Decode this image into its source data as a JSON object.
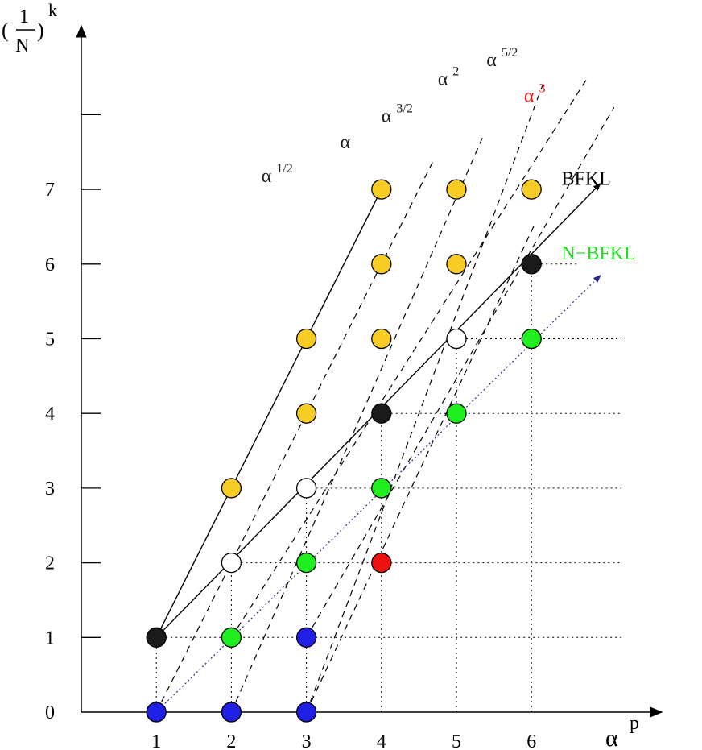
{
  "chart_data": {
    "type": "scatter",
    "x_axis": {
      "label": "α",
      "label_superscript": "p",
      "ticks": [
        "1",
        "2",
        "3",
        "4",
        "5",
        "6"
      ]
    },
    "y_axis": {
      "label_numerator": "1",
      "label_denominator": "N",
      "label_exponent": "k",
      "ticks": [
        "0",
        "1",
        "2",
        "3",
        "4",
        "5",
        "6",
        "7"
      ],
      "unlabeled_tick": 8
    },
    "colors": {
      "blue": "#1f1fe6",
      "yellow": "#f7cc24",
      "green": "#1fee1f",
      "black": "#1a1a1a",
      "white": "#ffffff",
      "red": "#ee1111",
      "bfkl_label": "#000000",
      "nbfkl_label": "#1fdd1f",
      "alpha3_label": "#ee1111"
    },
    "points": [
      {
        "x": 1,
        "y": 0,
        "color": "blue"
      },
      {
        "x": 2,
        "y": 0,
        "color": "blue"
      },
      {
        "x": 3,
        "y": 0,
        "color": "blue"
      },
      {
        "x": 1,
        "y": 1,
        "color": "black"
      },
      {
        "x": 2,
        "y": 1,
        "color": "green"
      },
      {
        "x": 3,
        "y": 1,
        "color": "blue"
      },
      {
        "x": 2,
        "y": 2,
        "color": "white"
      },
      {
        "x": 3,
        "y": 2,
        "color": "green"
      },
      {
        "x": 4,
        "y": 2,
        "color": "red"
      },
      {
        "x": 2,
        "y": 3,
        "color": "yellow"
      },
      {
        "x": 3,
        "y": 3,
        "color": "white"
      },
      {
        "x": 4,
        "y": 3,
        "color": "green"
      },
      {
        "x": 3,
        "y": 4,
        "color": "yellow"
      },
      {
        "x": 4,
        "y": 4,
        "color": "black"
      },
      {
        "x": 5,
        "y": 4,
        "color": "green"
      },
      {
        "x": 3,
        "y": 5,
        "color": "yellow"
      },
      {
        "x": 4,
        "y": 5,
        "color": "yellow"
      },
      {
        "x": 5,
        "y": 5,
        "color": "white"
      },
      {
        "x": 6,
        "y": 5,
        "color": "green"
      },
      {
        "x": 4,
        "y": 6,
        "color": "yellow"
      },
      {
        "x": 5,
        "y": 6,
        "color": "yellow"
      },
      {
        "x": 6,
        "y": 6,
        "color": "black"
      },
      {
        "x": 4,
        "y": 7,
        "color": "yellow"
      },
      {
        "x": 5,
        "y": 7,
        "color": "yellow"
      },
      {
        "x": 6,
        "y": 7,
        "color": "yellow"
      }
    ],
    "horizontal_guides": [
      {
        "y": 1,
        "x_from": 1,
        "x_to": 7.2
      },
      {
        "y": 2,
        "x_from": 2,
        "x_to": 7.2
      },
      {
        "y": 3,
        "x_from": 3,
        "x_to": 7.2
      },
      {
        "y": 4,
        "x_from": 4,
        "x_to": 7.2
      },
      {
        "y": 5,
        "x_from": 5,
        "x_to": 7.2
      },
      {
        "y": 6,
        "x_from": 6,
        "x_to": 6.6
      }
    ],
    "vertical_guides": [
      {
        "x": 1,
        "y_from": 0,
        "y_to": 1
      },
      {
        "x": 2,
        "y_from": 0,
        "y_to": 2
      },
      {
        "x": 3,
        "y_from": 0,
        "y_to": 3
      },
      {
        "x": 4,
        "y_from": 0,
        "y_to": 4
      },
      {
        "x": 5,
        "y_from": 0,
        "y_to": 5
      },
      {
        "x": 6,
        "y_from": 0,
        "y_to": 6
      }
    ],
    "solid_lines": [
      {
        "name": "alpha-half",
        "points": [
          [
            1,
            1
          ],
          [
            4,
            7
          ]
        ]
      },
      {
        "name": "bfkl",
        "points": [
          [
            1,
            1
          ],
          [
            6.92,
            7.08
          ]
        ],
        "arrow": true
      }
    ],
    "dotted_lines": [
      {
        "name": "n-bfkl",
        "points": [
          [
            1,
            0
          ],
          [
            6.92,
            5.85
          ]
        ],
        "arrow": true,
        "color": "#2a2a8a"
      }
    ],
    "dashed_lines": [
      {
        "name": "alpha",
        "points": [
          [
            1,
            0
          ],
          [
            4.7,
            7.4
          ]
        ]
      },
      {
        "name": "alpha-3-2",
        "points": [
          [
            2,
            0
          ],
          [
            5.35,
            7.7
          ]
        ]
      },
      {
        "name": "alpha-2",
        "points": [
          [
            3,
            0
          ],
          [
            6.15,
            8.4
          ]
        ]
      },
      {
        "name": "alpha-5-2",
        "points": [
          [
            2,
            1
          ],
          [
            6.75,
            8.5
          ]
        ]
      },
      {
        "name": "alpha-3",
        "points": [
          [
            3,
            1
          ],
          [
            7.1,
            8.1
          ]
        ]
      },
      {
        "name": "extra",
        "points": [
          [
            3,
            0
          ],
          [
            6.05,
            6.55
          ]
        ]
      }
    ],
    "line_labels": [
      {
        "base": "α",
        "sup": "1/2",
        "x": 2.4,
        "y": 7.1,
        "color": "black"
      },
      {
        "base": "α",
        "sup": "",
        "x": 3.45,
        "y": 7.55,
        "color": "black"
      },
      {
        "base": "α",
        "sup": "3/2",
        "x": 4.0,
        "y": 7.9,
        "color": "black"
      },
      {
        "base": "α",
        "sup": "2",
        "x": 4.75,
        "y": 8.4,
        "color": "black"
      },
      {
        "base": "α",
        "sup": "5/2",
        "x": 5.4,
        "y": 8.65,
        "color": "black"
      },
      {
        "base": "α",
        "sup": "3",
        "x": 5.9,
        "y": 8.17,
        "color": "alpha3_label"
      },
      {
        "base": "BFKL",
        "sup": "",
        "x": 6.4,
        "y": 7.06,
        "color": "bfkl_label"
      },
      {
        "base": "N−BFKL",
        "sup": "",
        "x": 6.4,
        "y": 6.06,
        "color": "nbfkl_label"
      }
    ]
  }
}
